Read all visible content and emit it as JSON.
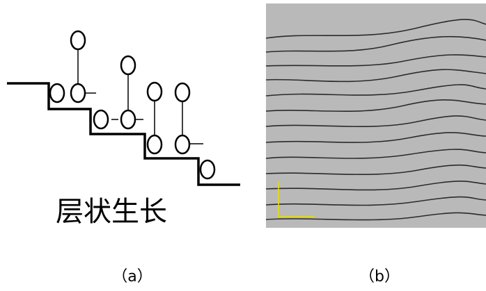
{
  "diagram": {
    "label": "层状生长"
  },
  "captions": {
    "a": "（a）",
    "b": "（b）"
  }
}
